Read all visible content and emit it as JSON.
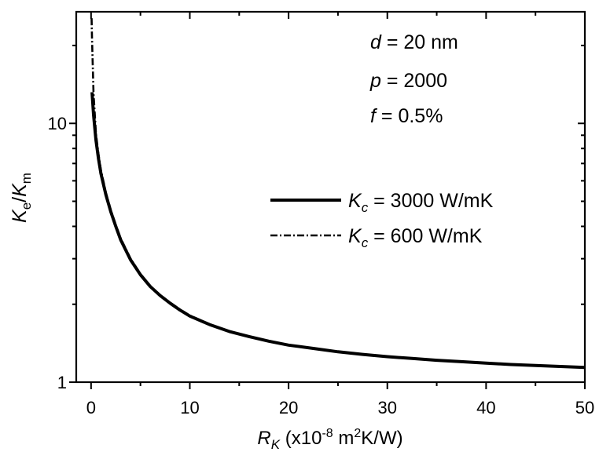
{
  "chart_data": {
    "type": "line",
    "annotations": [
      {
        "var": "d",
        "text": " = 20 nm"
      },
      {
        "var": "p",
        "text": " = 2000"
      },
      {
        "var": "f",
        "text": " = 0.5%"
      }
    ],
    "xlabel": {
      "var": "R",
      "sub": "K",
      "pre": " (x10",
      "sup": "-8",
      "mid": " m",
      "sup2": "2",
      "post": "K/W)"
    },
    "ylabel": {
      "var1": "K",
      "sub1": "e",
      "slash": "/",
      "var2": "K",
      "sub2": "m"
    },
    "xlim": [
      -1.5,
      50
    ],
    "ylim": [
      1,
      27
    ],
    "yscale": "log",
    "x_ticks": [
      0,
      10,
      20,
      30,
      40,
      50
    ],
    "y_ticks_labeled": [
      1,
      10
    ],
    "series": [
      {
        "legend": {
          "var": "K",
          "sub": "c",
          "text": " = 3000 W/mK"
        },
        "style": "solid",
        "color": "#000000",
        "x": [
          0.1,
          0.25,
          0.5,
          0.75,
          1,
          1.5,
          2,
          2.5,
          3,
          4,
          5,
          6,
          7,
          8,
          9,
          10,
          12,
          14,
          16,
          18,
          20,
          22.5,
          25,
          27.5,
          30,
          32.5,
          35,
          37.5,
          40,
          42.5,
          45,
          47.5,
          50
        ],
        "y": [
          13.2,
          10.8,
          8.6,
          7.3,
          6.4,
          5.3,
          4.55,
          4.0,
          3.55,
          2.97,
          2.6,
          2.34,
          2.16,
          2.02,
          1.9,
          1.8,
          1.67,
          1.57,
          1.5,
          1.44,
          1.39,
          1.35,
          1.31,
          1.28,
          1.255,
          1.235,
          1.215,
          1.2,
          1.185,
          1.17,
          1.16,
          1.15,
          1.14
        ]
      },
      {
        "legend": {
          "var": "K",
          "sub": "c",
          "text": " = 600 W/mK"
        },
        "style": "dash-dot",
        "color": "#000000",
        "x": [
          0.05,
          0.1,
          0.25,
          0.5,
          0.75,
          1,
          1.5,
          2,
          2.5,
          3,
          4,
          5,
          6,
          7,
          8,
          9,
          10,
          12,
          14,
          16,
          18,
          20,
          22.5,
          25,
          27.5,
          30,
          32.5,
          35,
          37.5,
          40,
          42.5,
          45,
          47.5,
          50
        ],
        "y": [
          25.5,
          21.0,
          13.0,
          9.1,
          7.6,
          6.6,
          5.4,
          4.62,
          4.05,
          3.6,
          3.0,
          2.62,
          2.35,
          2.17,
          2.03,
          1.91,
          1.81,
          1.67,
          1.57,
          1.5,
          1.44,
          1.39,
          1.35,
          1.31,
          1.28,
          1.255,
          1.235,
          1.215,
          1.2,
          1.185,
          1.17,
          1.16,
          1.15,
          1.14
        ]
      }
    ]
  }
}
